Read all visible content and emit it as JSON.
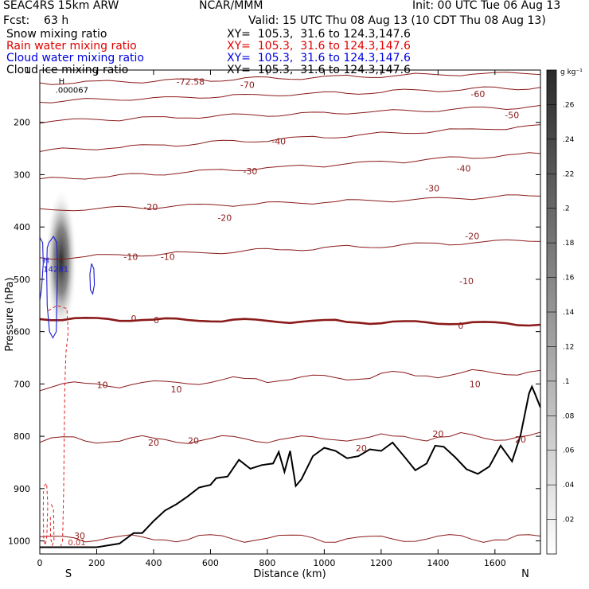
{
  "header": {
    "model": "SEAC4RS 15km ARW",
    "org": "NCAR/MMM",
    "init": "Init: 00 UTC Tue 06 Aug 13",
    "fcst": "Fcst:    63 h",
    "valid": "Valid: 15 UTC Thu 08 Aug 13 (10 CDT Thu 08 Aug 13)",
    "rows": [
      {
        "label": "Snow mixing ratio",
        "xy": "XY=  105.3,  31.6 to 124.3,147.6",
        "color": "#000000"
      },
      {
        "label": "Rain water mixing ratio",
        "xy": "XY=  105.3,  31.6 to 124.3,147.6",
        "color": "#e00000"
      },
      {
        "label": "Cloud water mixing ratio",
        "xy": "XY=  105.3,  31.6 to 124.3,147.6",
        "color": "#0000e0"
      },
      {
        "label": "Cloud ice mixing ratio",
        "xy": "XY=  105.3,  31.6 to 124.3,147.6",
        "color": "#000000"
      }
    ]
  },
  "chart_data": {
    "type": "contour cross-section",
    "xlabel": "Distance (km)",
    "ylabel": "Pressure (hPa)",
    "xlim": [
      0,
      1760
    ],
    "ylim": [
      1025,
      100
    ],
    "x_ticks": [
      0,
      200,
      400,
      600,
      800,
      1000,
      1200,
      1400,
      1600
    ],
    "y_ticks": [
      200,
      300,
      400,
      500,
      600,
      700,
      800,
      900,
      1000
    ],
    "y_top_label": "1",
    "endpoint_labels": {
      "left": "S",
      "right": "N"
    },
    "colorbar": {
      "unit": "g kg⁻¹",
      "ticks": [
        ".02",
        ".04",
        ".06",
        ".08",
        ".1",
        ".12",
        ".14",
        ".16",
        ".18",
        ".2",
        ".22",
        ".24",
        ".26"
      ],
      "min": 0,
      "max": 0.28
    },
    "snow_max": {
      "label": "H",
      "value": ".000067",
      "x": 55,
      "p": 128
    },
    "cloud_water_max": {
      "label": "H",
      "value": "14281",
      "x": 40,
      "p": 472
    },
    "cloud_ice_column": {
      "x": 120,
      "p_top": 330,
      "p_bottom": 610,
      "peak_p": 470,
      "peak_value": 0.26
    },
    "terrain": {
      "x": [
        0,
        60,
        200,
        280,
        330,
        360,
        400,
        440,
        480,
        520,
        560,
        600,
        620,
        660,
        700,
        740,
        780,
        820,
        840,
        860,
        880,
        900,
        920,
        960,
        1000,
        1040,
        1080,
        1120,
        1160,
        1200,
        1240,
        1280,
        1320,
        1360,
        1390,
        1420,
        1460,
        1500,
        1540,
        1580,
        1620,
        1660,
        1690,
        1720,
        1730,
        1740,
        1760
      ],
      "p": [
        1012,
        1012,
        1012,
        1005,
        985,
        985,
        962,
        942,
        930,
        915,
        898,
        893,
        880,
        877,
        845,
        862,
        855,
        852,
        830,
        868,
        828,
        895,
        882,
        838,
        822,
        828,
        842,
        838,
        825,
        828,
        812,
        838,
        865,
        852,
        818,
        820,
        840,
        863,
        872,
        858,
        818,
        848,
        798,
        718,
        705,
        718,
        745
      ]
    },
    "temperature_contours": [
      {
        "value": -70,
        "labels": [
          {
            "text": "-72.58",
            "x": 530,
            "p": 122
          },
          {
            "text": "-70",
            "x": 730,
            "p": 128
          }
        ],
        "p_left": 125,
        "p_right": 105
      },
      {
        "value": -60,
        "labels": [
          {
            "text": "-60",
            "x": 1540,
            "p": 146
          }
        ],
        "p_left": 160,
        "p_right": 133
      },
      {
        "value": -50,
        "labels": [
          {
            "text": "-50",
            "x": 1660,
            "p": 186
          }
        ],
        "p_left": 198,
        "p_right": 170
      },
      {
        "value": -40,
        "labels": [
          {
            "text": "-40",
            "x": 840,
            "p": 236
          },
          {
            "text": "-40",
            "x": 1490,
            "p": 288
          }
        ],
        "p_left": 255,
        "p_right": 207
      },
      {
        "value": -30,
        "labels": [
          {
            "text": "-30",
            "x": 740,
            "p": 293
          },
          {
            "text": "-30",
            "x": 1380,
            "p": 326
          }
        ],
        "p_left": 310,
        "p_right": 260
      },
      {
        "value": -20,
        "labels": [
          {
            "text": "-20",
            "x": 390,
            "p": 362
          },
          {
            "text": "-20",
            "x": 650,
            "p": 382
          },
          {
            "text": "-20",
            "x": 1520,
            "p": 417
          }
        ],
        "p_left": 368,
        "p_right": 340
      },
      {
        "value": -10,
        "labels": [
          {
            "text": "-10",
            "x": 320,
            "p": 457
          },
          {
            "text": "-10",
            "x": 450,
            "p": 457
          },
          {
            "text": "-10",
            "x": 1500,
            "p": 503
          }
        ],
        "p_left": 460,
        "p_right": 425
      },
      {
        "value": 0,
        "bold": true,
        "labels": [
          {
            "text": "0",
            "x": 330,
            "p": 575
          },
          {
            "text": "0",
            "x": 410,
            "p": 578
          },
          {
            "text": "0",
            "x": 1480,
            "p": 588
          }
        ],
        "p_left": 575,
        "p_right": 585
      },
      {
        "value": 10,
        "labels": [
          {
            "text": "10",
            "x": 220,
            "p": 702
          },
          {
            "text": "10",
            "x": 480,
            "p": 710
          },
          {
            "text": "10",
            "x": 1530,
            "p": 700
          }
        ],
        "p_left": 705,
        "p_right": 675
      },
      {
        "value": 20,
        "labels": [
          {
            "text": "20",
            "x": 400,
            "p": 812
          },
          {
            "text": "20",
            "x": 540,
            "p": 808
          },
          {
            "text": "20",
            "x": 1130,
            "p": 823
          },
          {
            "text": "20",
            "x": 1400,
            "p": 795
          },
          {
            "text": "20",
            "x": 1690,
            "p": 806
          }
        ],
        "p_left": 808,
        "p_right": 800
      },
      {
        "value": 30,
        "labels": [
          {
            "text": "30",
            "x": 140,
            "p": 990
          }
        ],
        "p_left": 995,
        "p_right": 995
      }
    ],
    "rain_label": {
      "text": "0.01",
      "x": 130,
      "p": 1002
    }
  }
}
